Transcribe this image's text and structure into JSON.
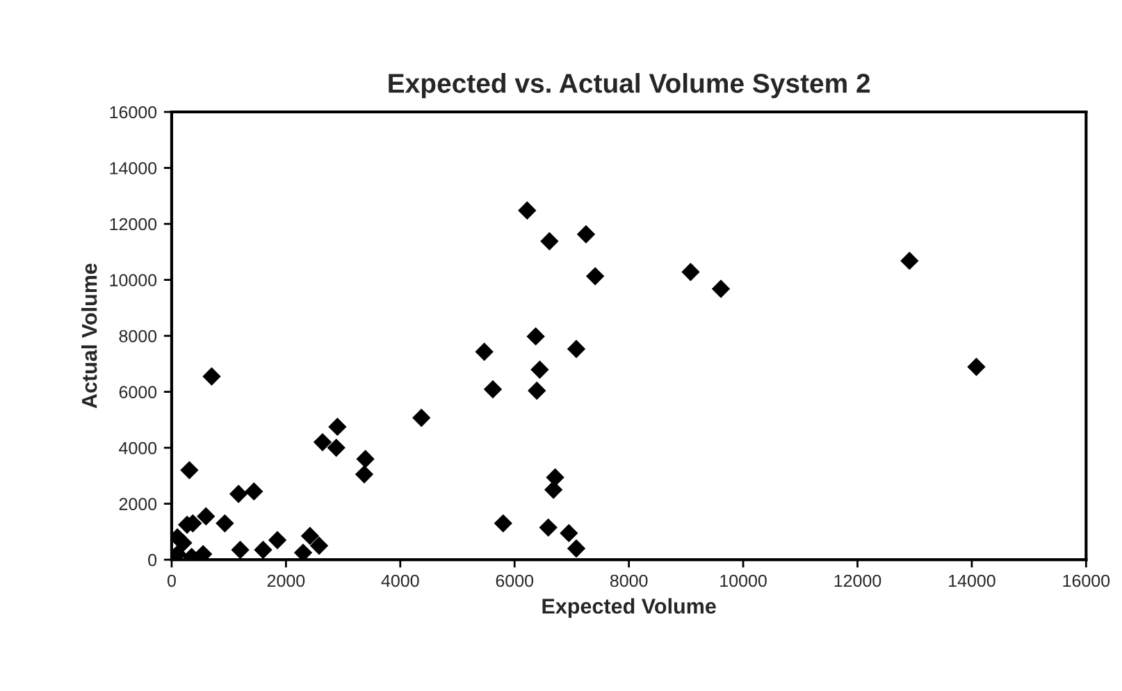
{
  "chart_data": {
    "type": "scatter",
    "title": "Expected vs. Actual Volume System 2",
    "xlabel": "Expected Volume",
    "ylabel": "Actual Volume",
    "x": [
      100,
      200,
      350,
      100,
      550,
      270,
      310,
      370,
      600,
      700,
      930,
      1170,
      1440,
      1200,
      1600,
      1850,
      2300,
      2420,
      2580,
      2640,
      2880,
      2900,
      3390,
      3370,
      4370,
      5470,
      5620,
      5800,
      6220,
      6370,
      6390,
      6440,
      6590,
      6610,
      6680,
      6710,
      6950,
      7080,
      7080,
      7250,
      7410,
      9080,
      9610,
      12910,
      14080
    ],
    "values": [
      200,
      600,
      100,
      800,
      200,
      1250,
      3200,
      1300,
      1550,
      6550,
      1300,
      2350,
      2440,
      350,
      350,
      700,
      250,
      850,
      500,
      4200,
      4000,
      4750,
      3600,
      3050,
      5070,
      7430,
      6090,
      1300,
      12480,
      7980,
      6040,
      6790,
      1150,
      11380,
      2500,
      2940,
      950,
      400,
      7530,
      11630,
      10130,
      10280,
      9680,
      10680,
      6890
    ],
    "color": "#000000",
    "marker": "diamond",
    "xlim": [
      0,
      16000
    ],
    "xticks": [
      0,
      2000,
      4000,
      6000,
      8000,
      10000,
      12000,
      14000,
      16000
    ],
    "ylim": [
      0,
      16000
    ],
    "yticks": [
      0,
      2000,
      4000,
      6000,
      8000,
      10000,
      12000,
      14000,
      16000
    ],
    "grid": false
  }
}
